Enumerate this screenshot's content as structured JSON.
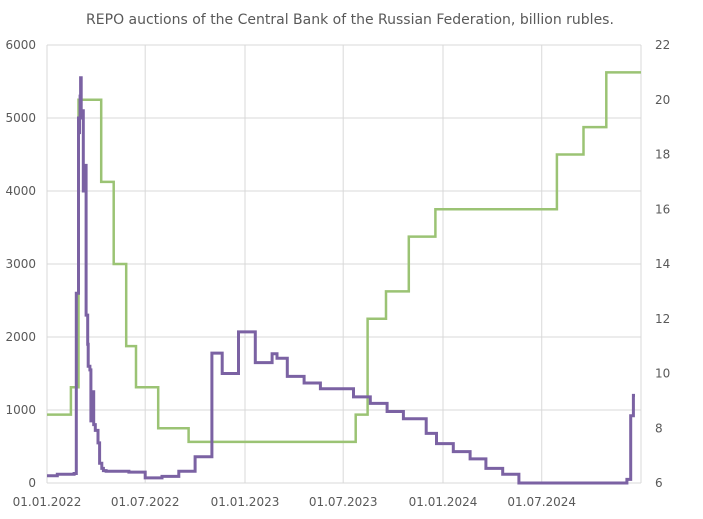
{
  "chart_data": {
    "type": "line",
    "title": "REPO auctions of the Central Bank of the Russian Federation, billion rubles.",
    "x_ticks": [
      "01.01.2022",
      "01.07.2022",
      "01.01.2023",
      "01.07.2023",
      "01.01.2024",
      "01.07.2024"
    ],
    "x_range": [
      "2022-01-01",
      "2024-12-31"
    ],
    "y_left": {
      "ticks": [
        "0",
        "1000",
        "2000",
        "3000",
        "4000",
        "5000",
        "6000"
      ],
      "ylim": [
        0,
        6000
      ]
    },
    "y_right": {
      "ticks": [
        "6",
        "8",
        "10",
        "12",
        "14",
        "16",
        "18",
        "20",
        "22"
      ],
      "ylim": [
        6,
        22
      ]
    },
    "grid": true,
    "colors": {
      "repo": "#7b62a3",
      "rate": "#9bc374",
      "grid": "#d9d9d9",
      "text": "#595959"
    },
    "series": [
      {
        "axis": "left",
        "style": "step",
        "x": [
          "2022-01-01",
          "2022-01-10",
          "2022-01-20",
          "2022-02-01",
          "2022-02-20",
          "2022-02-24",
          "2022-02-28",
          "2022-03-01",
          "2022-03-02",
          "2022-03-03",
          "2022-03-04",
          "2022-03-05",
          "2022-03-07",
          "2022-03-09",
          "2022-03-11",
          "2022-03-14",
          "2022-03-17",
          "2022-03-18",
          "2022-03-21",
          "2022-03-23",
          "2022-03-25",
          "2022-03-28",
          "2022-03-31",
          "2022-04-05",
          "2022-04-08",
          "2022-04-12",
          "2022-04-15",
          "2022-04-20",
          "2022-04-25",
          "2022-05-01",
          "2022-05-15",
          "2022-06-01",
          "2022-07-01",
          "2022-08-01",
          "2022-09-01",
          "2022-10-01",
          "2022-11-01",
          "2022-11-20",
          "2022-12-20",
          "2023-01-20",
          "2023-02-20",
          "2023-03-01",
          "2023-03-20",
          "2023-04-20",
          "2023-05-20",
          "2023-06-20",
          "2023-07-20",
          "2023-08-20",
          "2023-09-20",
          "2023-10-20",
          "2023-11-10",
          "2023-12-01",
          "2023-12-20",
          "2024-01-20",
          "2024-02-20",
          "2024-03-20",
          "2024-04-20",
          "2024-05-20",
          "2024-06-20",
          "2024-07-10",
          "2024-08-01",
          "2024-09-01",
          "2024-10-01",
          "2024-11-01",
          "2024-11-25",
          "2024-12-05",
          "2024-12-10",
          "2024-12-12",
          "2024-12-17",
          "2024-12-20"
        ],
        "values": [
          100,
          100,
          120,
          120,
          130,
          2600,
          5000,
          4800,
          5000,
          5300,
          5550,
          5000,
          5100,
          4000,
          4350,
          2300,
          1900,
          1600,
          1550,
          850,
          1250,
          800,
          720,
          550,
          270,
          200,
          170,
          160,
          160,
          160,
          160,
          150,
          70,
          90,
          160,
          360,
          1780,
          1500,
          2070,
          1650,
          1770,
          1710,
          1460,
          1370,
          1290,
          1290,
          1180,
          1090,
          980,
          880,
          880,
          680,
          540,
          430,
          330,
          200,
          120,
          0,
          0,
          0,
          0,
          0,
          0,
          0,
          0,
          50,
          50,
          920,
          1200,
          1200
        ]
      },
      {
        "axis": "right",
        "style": "step",
        "x": [
          "2022-01-01",
          "2022-02-14",
          "2022-02-28",
          "2022-04-11",
          "2022-05-04",
          "2022-05-27",
          "2022-06-14",
          "2022-07-25",
          "2022-09-19",
          "2023-07-24",
          "2023-08-15",
          "2023-09-18",
          "2023-10-30",
          "2023-12-18",
          "2024-07-29",
          "2024-09-16",
          "2024-10-28",
          "2024-12-31"
        ],
        "values": [
          8.5,
          9.5,
          20,
          17,
          14,
          11,
          9.5,
          8,
          7.5,
          8.5,
          12,
          13,
          15,
          16,
          18,
          19,
          21,
          21
        ]
      }
    ]
  }
}
